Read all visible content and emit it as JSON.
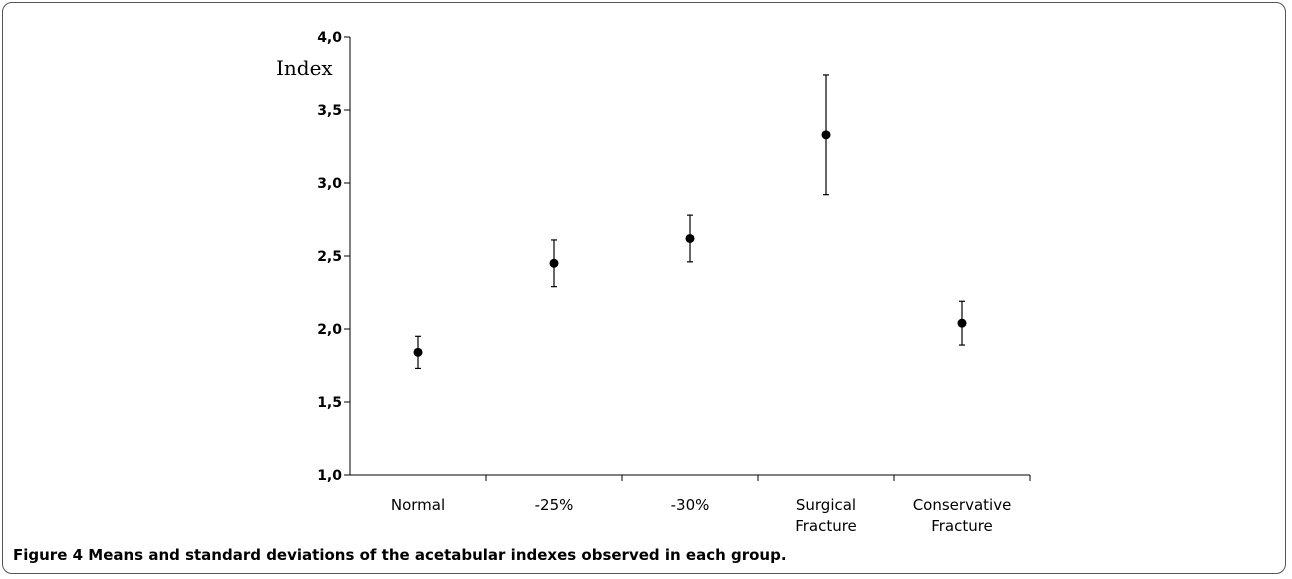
{
  "chart_data": {
    "type": "scatter",
    "ylabel": "Index",
    "ylim": [
      1.0,
      4.0
    ],
    "yticks": [
      1.0,
      1.5,
      2.0,
      2.5,
      3.0,
      3.5,
      4.0
    ],
    "ytick_labels": [
      "1,0",
      "1,5",
      "2,0",
      "2,5",
      "3,0",
      "3,5",
      "4,0"
    ],
    "categories": [
      [
        "Normal"
      ],
      [
        "-25%"
      ],
      [
        "-30%"
      ],
      [
        "Surgical",
        "Fracture"
      ],
      [
        "Conservative",
        "Fracture"
      ]
    ],
    "series": [
      {
        "means": [
          1.84,
          2.45,
          2.62,
          3.33,
          2.04
        ],
        "errors": [
          0.11,
          0.16,
          0.16,
          0.41,
          0.15
        ]
      }
    ]
  },
  "caption": {
    "label": "Figure 4",
    "text": " Means and standard deviations of the acetabular indexes observed in each group."
  }
}
